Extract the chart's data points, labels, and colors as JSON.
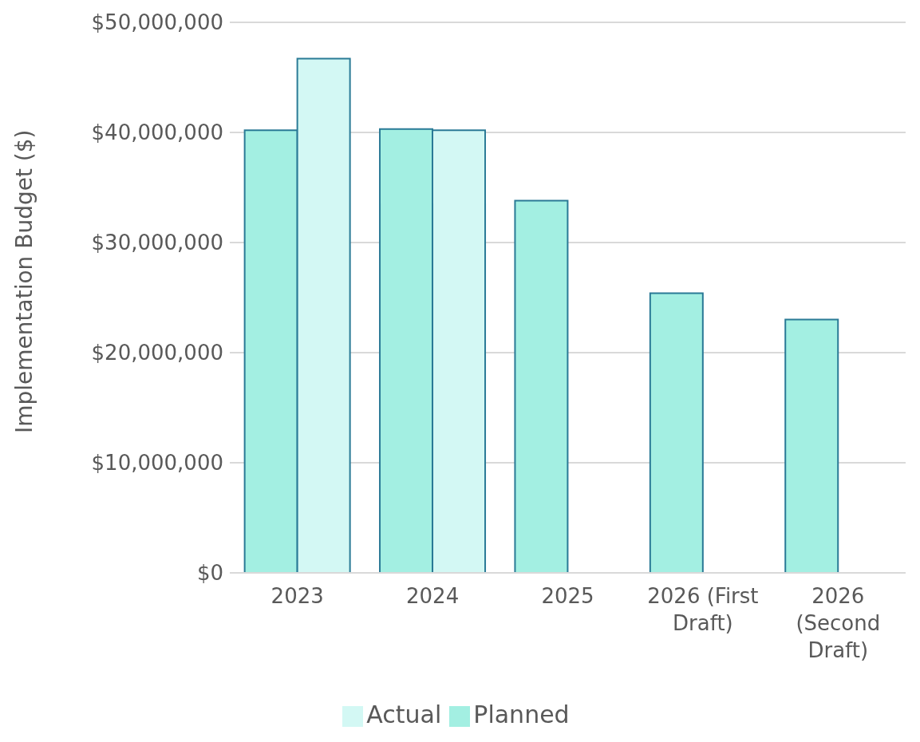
{
  "chart_data": {
    "type": "bar",
    "ylabel": "Implementation Budget ($)",
    "categories": [
      "2023",
      "2024",
      "2025",
      "2026 (First Draft)",
      "2026 (Second Draft)"
    ],
    "series": [
      {
        "name": "Planned",
        "color": "#a3efe2",
        "values": [
          40200000,
          40300000,
          33800000,
          25400000,
          23000000
        ]
      },
      {
        "name": "Actual",
        "color": "#d3f8f4",
        "values": [
          46700000,
          40200000,
          null,
          null,
          null
        ]
      }
    ],
    "ylim": [
      0,
      50000000
    ],
    "yticks": [
      {
        "value": 0,
        "label": "$0"
      },
      {
        "value": 10000000,
        "label": "$10,000,000"
      },
      {
        "value": 20000000,
        "label": "$20,000,000"
      },
      {
        "value": 30000000,
        "label": "$30,000,000"
      },
      {
        "value": 40000000,
        "label": "$40,000,000"
      },
      {
        "value": 50000000,
        "label": "$50,000,000"
      }
    ],
    "grid": "y",
    "legend": "bottom"
  }
}
